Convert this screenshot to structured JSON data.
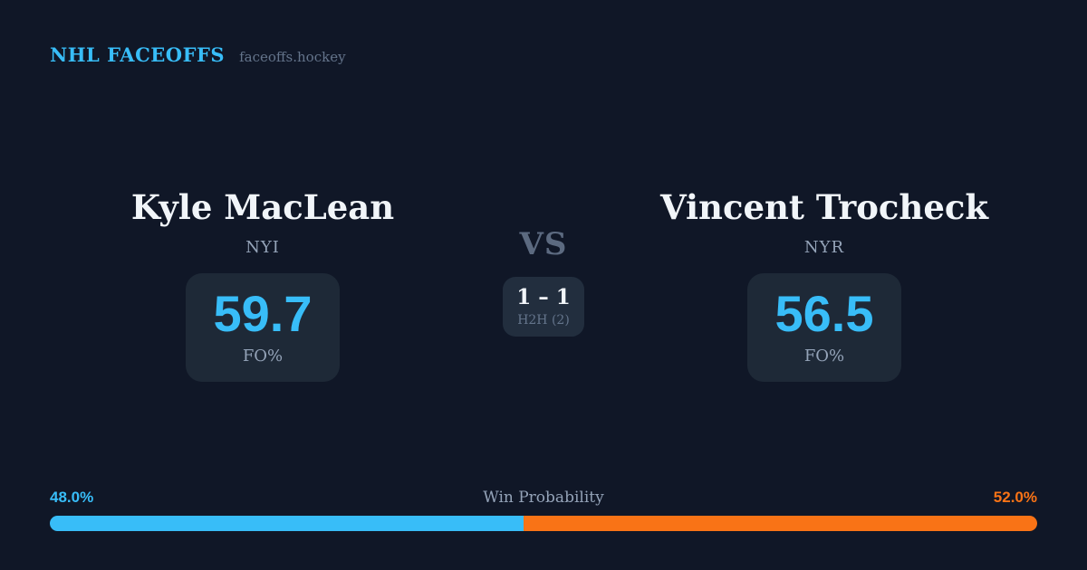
{
  "header": {
    "brand": "NHL FACEOFFS",
    "site": "faceoffs.hockey"
  },
  "matchup": {
    "vs_label": "VS",
    "h2h": {
      "score": "1 – 1",
      "label": "H2H (2)"
    },
    "players": [
      {
        "name": "Kyle MacLean",
        "team": "NYI",
        "stat_value": "59.7",
        "stat_label": "FO%"
      },
      {
        "name": "Vincent Trocheck",
        "team": "NYR",
        "stat_value": "56.5",
        "stat_label": "FO%"
      }
    ]
  },
  "win_probability": {
    "title": "Win Probability",
    "left_pct_label": "48.0%",
    "right_pct_label": "52.0%",
    "left_value": 48.0,
    "right_value": 52.0,
    "left_color": "#38bdf8",
    "right_color": "#f97316"
  },
  "colors": {
    "background": "#101727",
    "card": "#1e2937",
    "accent": "#38bdf8",
    "orange": "#f97316"
  }
}
